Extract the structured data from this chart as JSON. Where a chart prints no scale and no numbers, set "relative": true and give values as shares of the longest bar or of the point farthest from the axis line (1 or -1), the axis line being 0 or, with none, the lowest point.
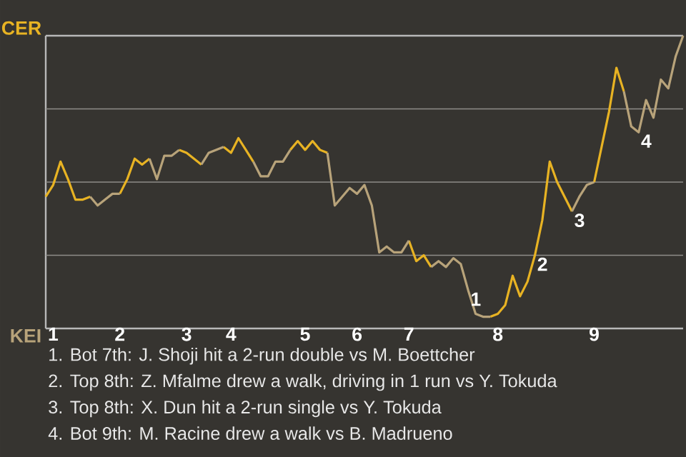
{
  "chart_data": {
    "type": "line",
    "relative": true,
    "categories": [
      null,
      "1",
      null,
      null,
      null,
      null,
      null,
      null,
      null,
      null,
      "2",
      null,
      null,
      null,
      null,
      null,
      null,
      null,
      null,
      "3",
      null,
      null,
      null,
      null,
      null,
      "4",
      null,
      null,
      null,
      null,
      null,
      null,
      null,
      null,
      null,
      "5",
      null,
      null,
      null,
      null,
      null,
      null,
      "6",
      null,
      null,
      null,
      null,
      null,
      null,
      "7",
      null,
      null,
      null,
      null,
      null,
      null,
      null,
      null,
      null,
      null,
      null,
      "8",
      null,
      null,
      null,
      null,
      null,
      null,
      null,
      null,
      null,
      null,
      null,
      null,
      "9",
      null,
      null,
      null,
      null,
      null,
      null,
      null,
      null,
      null,
      null,
      null,
      null
    ],
    "grid": "y",
    "marker": "none",
    "line_style": "solid",
    "series": [
      {
        "color": "#e8b323",
        "values": [
          0.45,
          0.49,
          0.57,
          0.51,
          0.44,
          0.44,
          0.45,
          null,
          null,
          null,
          0.46,
          0.51,
          0.58,
          0.56,
          0.58,
          null,
          null,
          null,
          0.61,
          0.6,
          0.58,
          0.56,
          null,
          null,
          0.62,
          0.6,
          0.65,
          0.61,
          0.57,
          null,
          null,
          null,
          null,
          0.61,
          0.64,
          0.61,
          0.64,
          0.61,
          0.6,
          null,
          null,
          null,
          null,
          null,
          null,
          null,
          null,
          null,
          null,
          0.3,
          0.23,
          0.25,
          0.21,
          null,
          null,
          null,
          null,
          null,
          null,
          null,
          0.04,
          0.05,
          0.08,
          0.18,
          0.11,
          0.16,
          0.25,
          0.37,
          0.57,
          0.5,
          0.45,
          0.4,
          null,
          null,
          0.5,
          0.62,
          0.74,
          0.89,
          0.81,
          null,
          null,
          null,
          null,
          null,
          null,
          null,
          null
        ]
      },
      {
        "color": "#b8a37a",
        "values": [
          null,
          null,
          null,
          null,
          null,
          null,
          0.45,
          0.42,
          0.44,
          0.46,
          0.46,
          null,
          null,
          null,
          0.58,
          0.51,
          0.59,
          0.59,
          0.61,
          null,
          null,
          0.56,
          0.6,
          0.61,
          0.62,
          null,
          null,
          null,
          0.57,
          0.52,
          0.52,
          0.57,
          0.57,
          0.61,
          null,
          null,
          null,
          null,
          0.6,
          0.42,
          0.45,
          0.48,
          0.46,
          0.49,
          0.42,
          0.26,
          0.28,
          0.26,
          0.26,
          0.3,
          null,
          null,
          0.21,
          0.23,
          0.21,
          0.24,
          0.22,
          0.13,
          0.05,
          0.04,
          0.04,
          null,
          null,
          null,
          null,
          null,
          null,
          null,
          null,
          null,
          null,
          0.4,
          0.45,
          0.49,
          0.5,
          null,
          null,
          null,
          0.81,
          0.69,
          0.67,
          0.78,
          0.72,
          0.85,
          0.82,
          0.93,
          1.0
        ]
      }
    ],
    "annotations": [
      "CER",
      "KEI",
      {
        "text": "1",
        "y": 0.13
      },
      {
        "text": "2",
        "y": 0.25
      },
      {
        "text": "3",
        "y": 0.4
      },
      {
        "text": "4",
        "y": 0.67
      },
      "1. Bot 7th: J. Shoji hit a 2-run double vs M. Boettcher",
      "2. Top 8th: Z. Mfalme drew a walk, driving in 1 run vs Y. Tokuda",
      "3. Top 8th: X. Dun hit a 2-run single vs Y. Tokuda",
      "4. Bot 9th: M. Racine drew a walk vs B. Madrueno"
    ]
  }
}
